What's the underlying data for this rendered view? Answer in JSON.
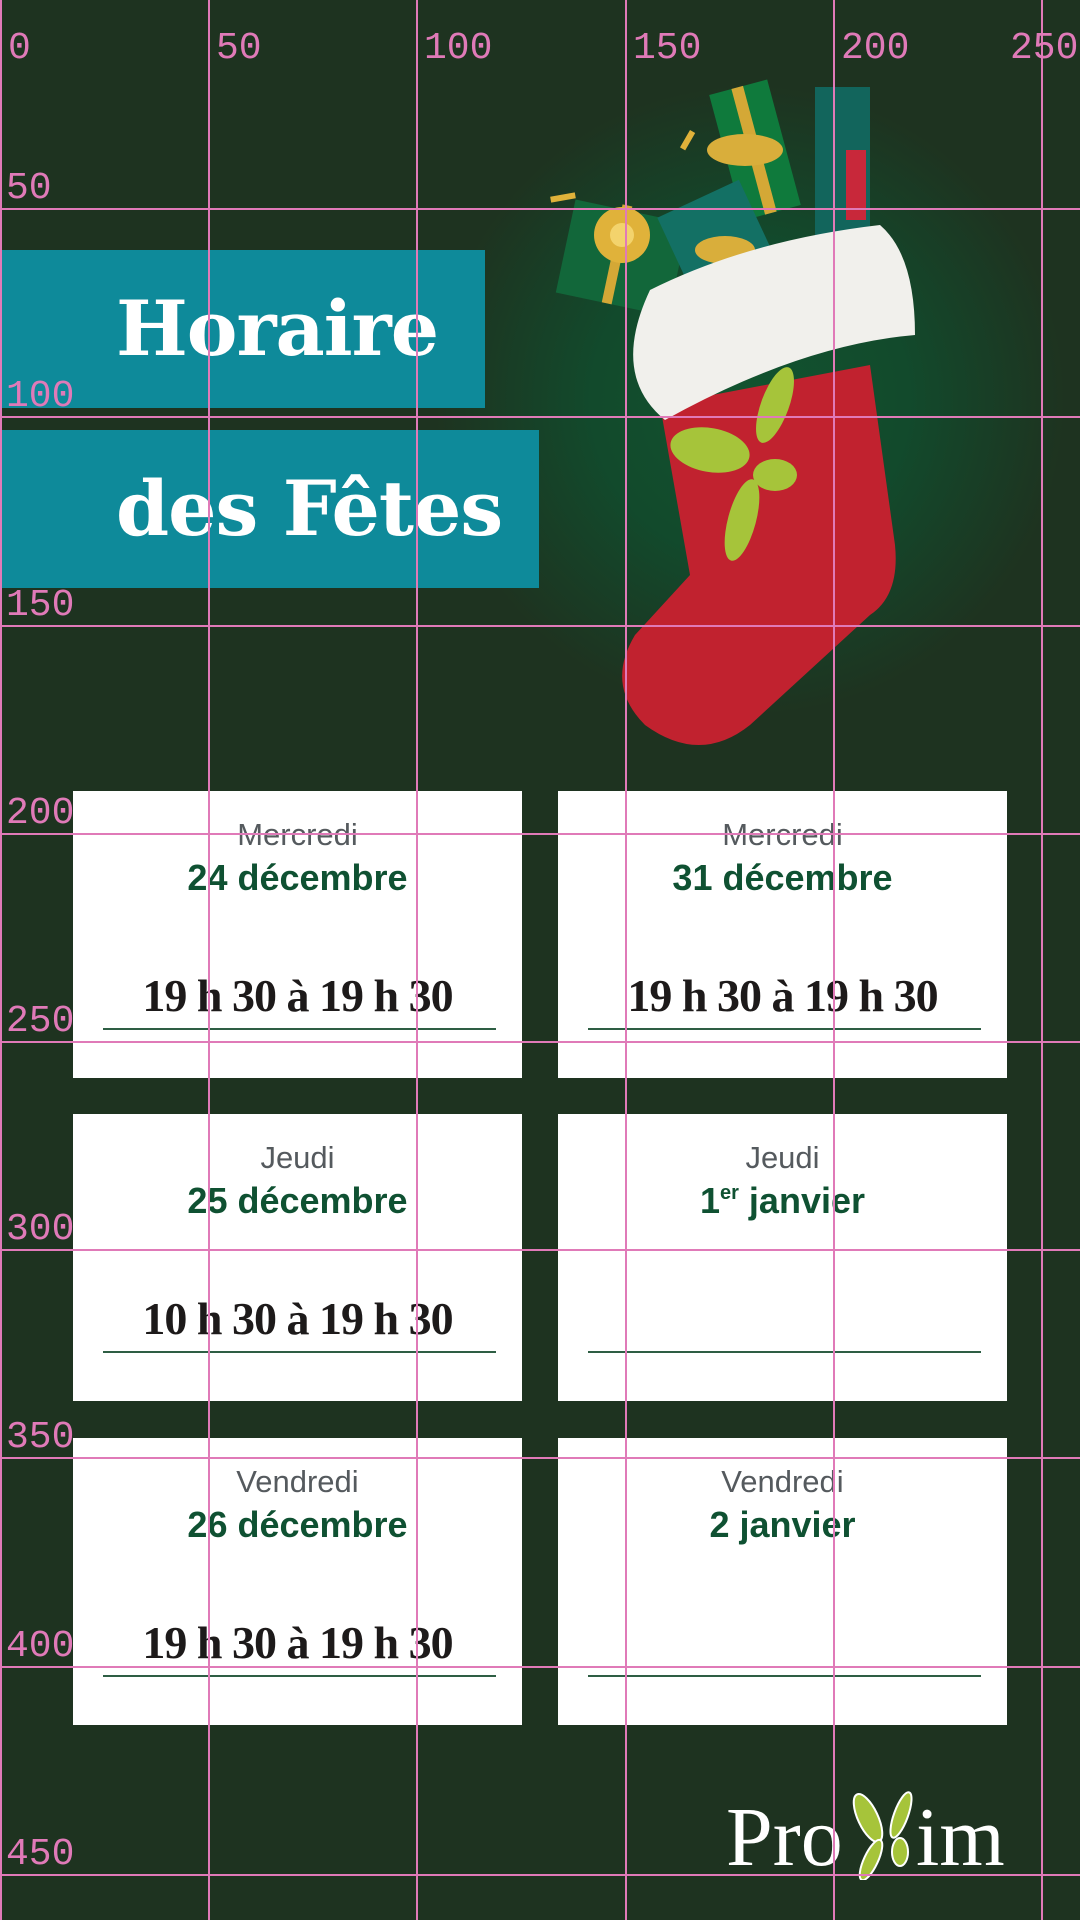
{
  "title": {
    "line1": "Horaire",
    "line2": "des Fêtes"
  },
  "colors": {
    "background": "#1e3320",
    "title_box": "#0e8a9a",
    "date_text": "#0f5132",
    "logo_accent": "#a6c43a",
    "grid_overlay": "#e07ab8"
  },
  "illustration": "christmas-stocking-with-gifts",
  "schedule": [
    {
      "day": "Mercredi",
      "date": "24 décembre",
      "hours": "19 h 30 à 19 h 30"
    },
    {
      "day": "Mercredi",
      "date": "31 décembre",
      "hours": "19 h 30 à 19 h 30"
    },
    {
      "day": "Jeudi",
      "date": "25 décembre",
      "hours": "10 h 30 à 19 h 30"
    },
    {
      "day": "Jeudi",
      "date_num": "1",
      "date_sup": "er",
      "date_rest": " janvier",
      "hours": ""
    },
    {
      "day": "Vendredi",
      "date": "26 décembre",
      "hours": "19 h 30 à 19 h 30"
    },
    {
      "day": "Vendredi",
      "date": "2 janvier",
      "hours": ""
    }
  ],
  "logo": {
    "text": "Proxim"
  },
  "grid": {
    "x_labels": [
      "0",
      "50",
      "100",
      "150",
      "200",
      "250"
    ],
    "y_labels": [
      "50",
      "100",
      "150",
      "200",
      "250",
      "300",
      "350",
      "400",
      "450"
    ]
  }
}
